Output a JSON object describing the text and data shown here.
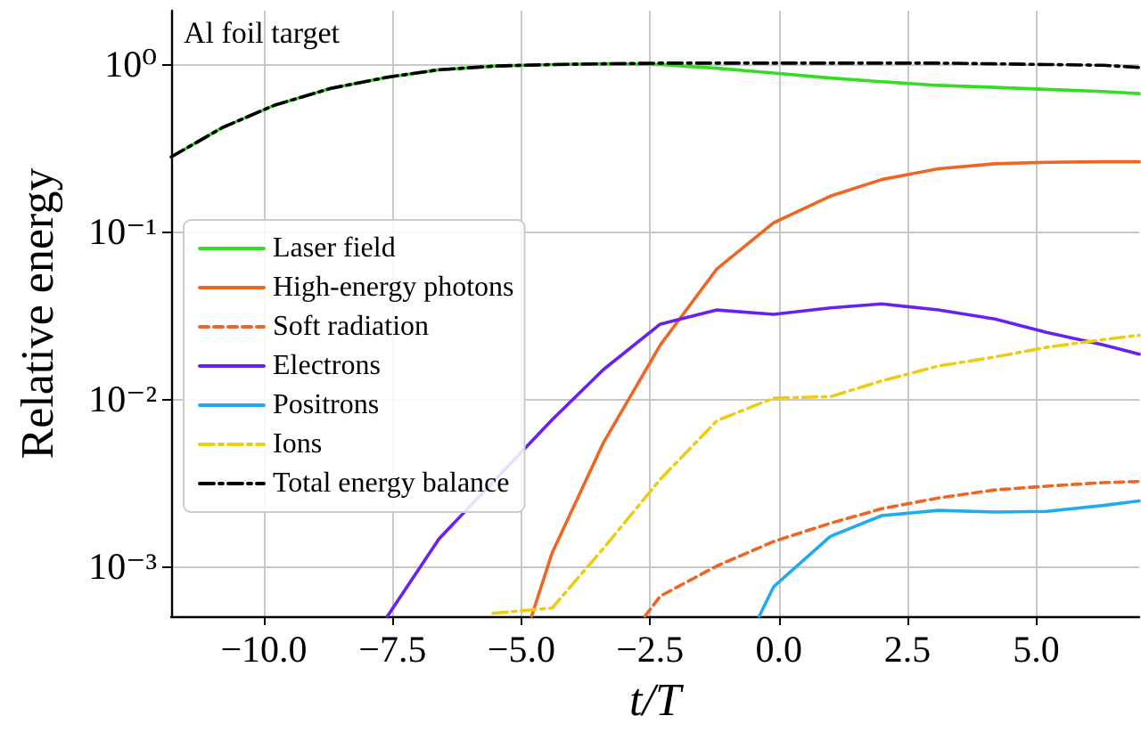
{
  "chart_data": {
    "type": "line",
    "xlabel": "t/T",
    "ylabel": "Relative energy",
    "annotations": [
      "Al foil target"
    ],
    "xlim": [
      -11.8,
      7.0
    ],
    "xticks": [
      {
        "value": -10,
        "label": "−10.0"
      },
      {
        "value": -7.5,
        "label": "−7.5"
      },
      {
        "value": -5,
        "label": "−5.0"
      },
      {
        "value": -2.5,
        "label": "−2.5"
      },
      {
        "value": 0,
        "label": "0.0"
      },
      {
        "value": 2.5,
        "label": "2.5"
      },
      {
        "value": 5,
        "label": "5.0"
      }
    ],
    "ylim": [
      0.0005,
      2.1
    ],
    "yticks": [
      {
        "value": 0.001,
        "label": "10⁻³"
      },
      {
        "value": 0.01,
        "label": "10⁻²"
      },
      {
        "value": 0.1,
        "label": "10⁻¹"
      },
      {
        "value": 1,
        "label": "10⁰"
      }
    ],
    "log": "y",
    "grid": true,
    "legend": "left",
    "marker": "none",
    "series": [
      {
        "name": "Laser field",
        "color": "#33dd22",
        "line_style": "solid",
        "x": [
          -11.8,
          -10.8,
          -9.8,
          -8.7,
          -7.6,
          -6.6,
          -5.5,
          -4.4,
          -3.4,
          -2.3,
          -1.2,
          -0.1,
          1.0,
          2.0,
          3.1,
          4.2,
          5.2,
          6.3,
          7.0
        ],
        "values": [
          0.28,
          0.42,
          0.57,
          0.72,
          0.84,
          0.93,
          0.98,
          1.0,
          1.01,
          1.0,
          0.95,
          0.89,
          0.83,
          0.79,
          0.75,
          0.73,
          0.71,
          0.69,
          0.67
        ]
      },
      {
        "name": "High-energy photons",
        "color": "#ee6622",
        "line_style": "solid",
        "x": [
          -4.8,
          -4.4,
          -3.4,
          -2.3,
          -1.2,
          -0.1,
          1.0,
          2.0,
          3.1,
          4.2,
          5.2,
          6.3,
          7.0
        ],
        "values": [
          0.0005,
          0.0012,
          0.0055,
          0.021,
          0.06,
          0.113,
          0.163,
          0.205,
          0.238,
          0.255,
          0.26,
          0.262,
          0.262
        ]
      },
      {
        "name": "Soft radiation",
        "color": "#ee6622",
        "line_style": "dashed",
        "x": [
          -2.6,
          -2.3,
          -1.2,
          -0.1,
          1.0,
          2.0,
          3.1,
          4.2,
          5.2,
          6.3,
          7.0
        ],
        "values": [
          0.0005,
          0.00066,
          0.001,
          0.0014,
          0.0018,
          0.0022,
          0.00255,
          0.00285,
          0.003,
          0.00315,
          0.0032
        ]
      },
      {
        "name": "Electrons",
        "color": "#6622ee",
        "line_style": "solid",
        "x": [
          -7.6,
          -6.6,
          -4.4,
          -3.4,
          -2.3,
          -1.2,
          -0.1,
          1.0,
          2.0,
          3.1,
          4.2,
          5.2,
          6.3,
          7.0
        ],
        "values": [
          0.0005,
          0.00145,
          0.0075,
          0.015,
          0.028,
          0.034,
          0.032,
          0.035,
          0.037,
          0.034,
          0.03,
          0.025,
          0.021,
          0.0185
        ]
      },
      {
        "name": "Positrons",
        "color": "#22aaee",
        "line_style": "solid",
        "x": [
          -0.38,
          -0.1,
          1.0,
          2.0,
          3.1,
          4.2,
          5.2,
          6.3,
          7.0
        ],
        "values": [
          0.0005,
          0.00075,
          0.0015,
          0.002,
          0.00215,
          0.0021,
          0.00212,
          0.0023,
          0.00245
        ]
      },
      {
        "name": "Ions",
        "color": "#eecc11",
        "line_style": "dashdot",
        "x": [
          -5.55,
          -4.4,
          -3.4,
          -2.3,
          -1.2,
          -0.1,
          1.0,
          2.0,
          3.1,
          4.2,
          5.2,
          6.3,
          7.0
        ],
        "values": [
          0.00052,
          0.00056,
          0.00128,
          0.0033,
          0.0074,
          0.0101,
          0.0103,
          0.0128,
          0.0157,
          0.0178,
          0.0203,
          0.0226,
          0.024
        ]
      },
      {
        "name": "Total energy balance",
        "color": "#000000",
        "line_style": "dashdot",
        "x": [
          -11.8,
          -10.8,
          -9.8,
          -8.7,
          -7.6,
          -6.6,
          -5.5,
          -4.4,
          -3.4,
          -2.3,
          -1.2,
          -0.1,
          1.0,
          2.0,
          3.1,
          4.2,
          5.2,
          6.3,
          7.0
        ],
        "values": [
          0.28,
          0.42,
          0.57,
          0.72,
          0.84,
          0.93,
          0.98,
          1.0,
          1.01,
          1.02,
          1.02,
          1.02,
          1.02,
          1.02,
          1.02,
          1.01,
          1.0,
          0.99,
          0.96
        ]
      }
    ]
  }
}
